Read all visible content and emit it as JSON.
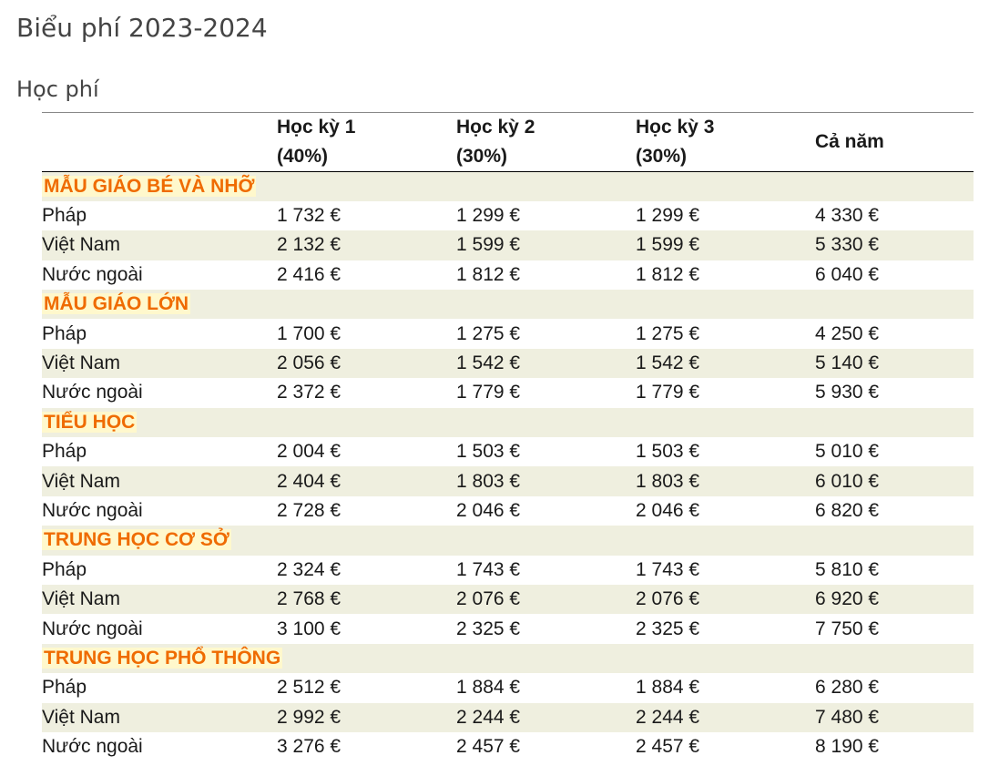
{
  "page_title": "Biểu phí 2023-2024",
  "section_title": "Học phí",
  "table": {
    "headers": [
      {
        "line1": "",
        "line2": ""
      },
      {
        "line1": "Học kỳ 1",
        "line2": "(40%)"
      },
      {
        "line1": "Học kỳ 2",
        "line2": "(30%)"
      },
      {
        "line1": "Học kỳ 3",
        "line2": "(30%)"
      },
      {
        "line1": "Cả năm",
        "line2": ""
      }
    ],
    "levels": [
      {
        "name": "MẪU GIÁO BÉ VÀ NHỠ",
        "rows": [
          {
            "label": "Pháp",
            "s1": "1 732 €",
            "s2": "1 299 €",
            "s3": "1 299 €",
            "year": "4 330 €"
          },
          {
            "label": "Việt Nam",
            "s1": "2 132 €",
            "s2": "1 599 €",
            "s3": "1 599 €",
            "year": "5 330 €"
          },
          {
            "label": "Nước ngoài",
            "s1": "2 416 €",
            "s2": "1 812 €",
            "s3": "1 812 €",
            "year": "6 040 €"
          }
        ]
      },
      {
        "name": "MẪU GIÁO LỚN",
        "rows": [
          {
            "label": "Pháp",
            "s1": "1 700 €",
            "s2": "1 275 €",
            "s3": "1 275 €",
            "year": "4 250 €"
          },
          {
            "label": "Việt Nam",
            "s1": "2 056 €",
            "s2": "1 542 €",
            "s3": "1 542 €",
            "year": "5 140 €"
          },
          {
            "label": "Nước ngoài",
            "s1": "2 372 €",
            "s2": "1 779 €",
            "s3": "1 779 €",
            "year": "5 930 €"
          }
        ]
      },
      {
        "name": "TIỂU HỌC",
        "rows": [
          {
            "label": "Pháp",
            "s1": "2 004 €",
            "s2": "1 503 €",
            "s3": "1 503 €",
            "year": "5 010 €"
          },
          {
            "label": "Việt Nam",
            "s1": "2 404 €",
            "s2": "1 803 €",
            "s3": "1 803 €",
            "year": "6 010 €"
          },
          {
            "label": "Nước ngoài",
            "s1": "2 728 €",
            "s2": "2 046 €",
            "s3": "2 046 €",
            "year": "6 820 €"
          }
        ]
      },
      {
        "name": "TRUNG HỌC CƠ SỞ",
        "rows": [
          {
            "label": "Pháp",
            "s1": "2 324 €",
            "s2": "1 743 €",
            "s3": "1 743 €",
            "year": "5 810 €"
          },
          {
            "label": "Việt Nam",
            "s1": "2 768 €",
            "s2": "2 076 €",
            "s3": "2 076 €",
            "year": "6 920 €"
          },
          {
            "label": "Nước ngoài",
            "s1": "3 100 €",
            "s2": "2 325 €",
            "s3": "2 325 €",
            "year": "7 750 €"
          }
        ]
      },
      {
        "name": "TRUNG HỌC PHỔ THÔNG",
        "rows": [
          {
            "label": "Pháp",
            "s1": "2 512 €",
            "s2": "1 884 €",
            "s3": "1 884 €",
            "year": "6 280 €"
          },
          {
            "label": "Việt Nam",
            "s1": "2 992 €",
            "s2": "2 244 €",
            "s3": "2 244 €",
            "year": "7 480 €"
          },
          {
            "label": "Nước ngoài",
            "s1": "3 276 €",
            "s2": "2 457 €",
            "s3": "2 457 €",
            "year": "8 190 €"
          }
        ]
      }
    ]
  }
}
